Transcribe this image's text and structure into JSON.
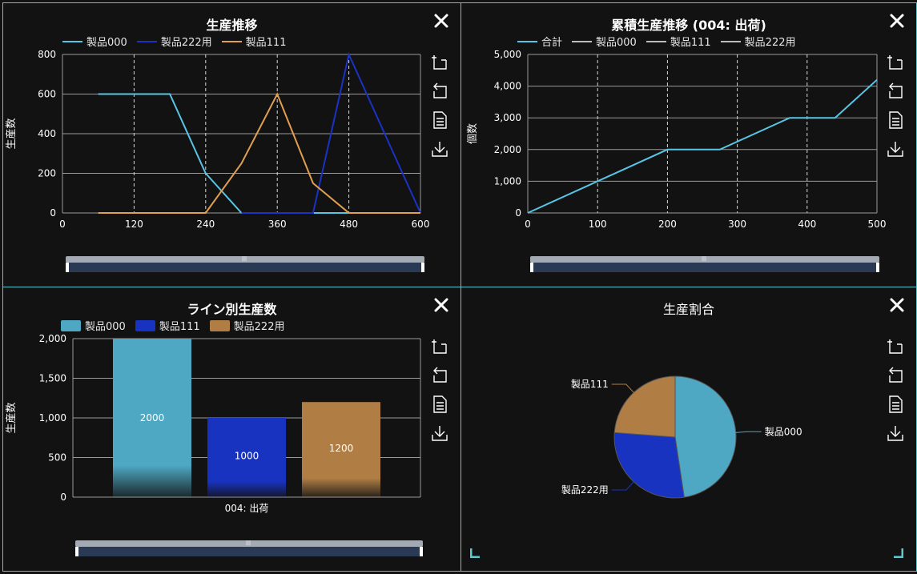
{
  "colors": {
    "border": "#5ec8d0",
    "background": "#121212",
    "p000": "#58c5e6",
    "p222": "#1a33c4",
    "p111": "#e0a050",
    "bar000": "#4ea8c3",
    "bar111": "#1833c0",
    "bar222": "#b07e45"
  },
  "icons": {
    "close": "close-icon",
    "tools": [
      "zoom-in-icon",
      "zoom-reset-icon",
      "data-view-icon",
      "download-icon"
    ]
  },
  "panel1": {
    "title": "生産推移",
    "ylabel": "生産数",
    "legend": [
      "製品000",
      "製品222用",
      "製品111"
    ]
  },
  "panel2": {
    "title": "累積生産推移 (004: 出荷)",
    "ylabel": "個数",
    "legend": [
      "合計",
      "製品000",
      "製品111",
      "製品222用"
    ]
  },
  "panel3": {
    "title": "ライン別生産数",
    "ylabel": "生産数",
    "legend": [
      "製品000",
      "製品111",
      "製品222用"
    ]
  },
  "panel4": {
    "title": "生産割合"
  },
  "chart_data": [
    {
      "type": "line",
      "title": "生産推移",
      "ylabel": "生産数",
      "xlim": [
        0,
        600
      ],
      "ylim": [
        0,
        800
      ],
      "xticks": [
        "0",
        "120",
        "240",
        "360",
        "480",
        "600"
      ],
      "yticks": [
        "0",
        "200",
        "400",
        "600",
        "800"
      ],
      "grid": true,
      "legend_position": "top",
      "series": [
        {
          "name": "製品000",
          "x": [
            60,
            180,
            240,
            300,
            600
          ],
          "y": [
            600,
            600,
            200,
            0,
            0
          ]
        },
        {
          "name": "製品222用",
          "x": [
            300,
            420,
            480,
            600
          ],
          "y": [
            0,
            0,
            800,
            0
          ]
        },
        {
          "name": "製品111",
          "x": [
            60,
            240,
            300,
            360,
            420,
            480,
            600
          ],
          "y": [
            0,
            0,
            250,
            600,
            150,
            0,
            0
          ]
        }
      ]
    },
    {
      "type": "line",
      "title": "累積生産推移 (004: 出荷)",
      "ylabel": "個数",
      "xlim": [
        0,
        500
      ],
      "ylim": [
        0,
        5000
      ],
      "xticks": [
        "0",
        "100",
        "200",
        "300",
        "400",
        "500"
      ],
      "yticks": [
        "0",
        "1,000",
        "2,000",
        "3,000",
        "4,000",
        "5,000"
      ],
      "grid": true,
      "legend_position": "top",
      "series": [
        {
          "name": "合計",
          "x": [
            0,
            200,
            275,
            375,
            440,
            500
          ],
          "y": [
            0,
            2000,
            2000,
            3000,
            3000,
            4200
          ]
        }
      ]
    },
    {
      "type": "bar",
      "title": "ライン別生産数",
      "ylabel": "生産数",
      "categories": [
        "004: 出荷"
      ],
      "ylim": [
        0,
        2000
      ],
      "yticks": [
        "0",
        "500",
        "1,000",
        "1,500",
        "2,000"
      ],
      "grid": true,
      "legend_position": "top",
      "series": [
        {
          "name": "製品000",
          "values": [
            2000
          ],
          "labels": [
            "2000"
          ]
        },
        {
          "name": "製品111",
          "values": [
            1000
          ],
          "labels": [
            "1000"
          ]
        },
        {
          "name": "製品222用",
          "values": [
            1200
          ],
          "labels": [
            "1200"
          ]
        }
      ]
    },
    {
      "type": "pie",
      "title": "生産割合",
      "slices": [
        {
          "name": "製品000",
          "value": 2000
        },
        {
          "name": "製品222用",
          "value": 1200
        },
        {
          "name": "製品111",
          "value": 1000
        }
      ]
    }
  ]
}
